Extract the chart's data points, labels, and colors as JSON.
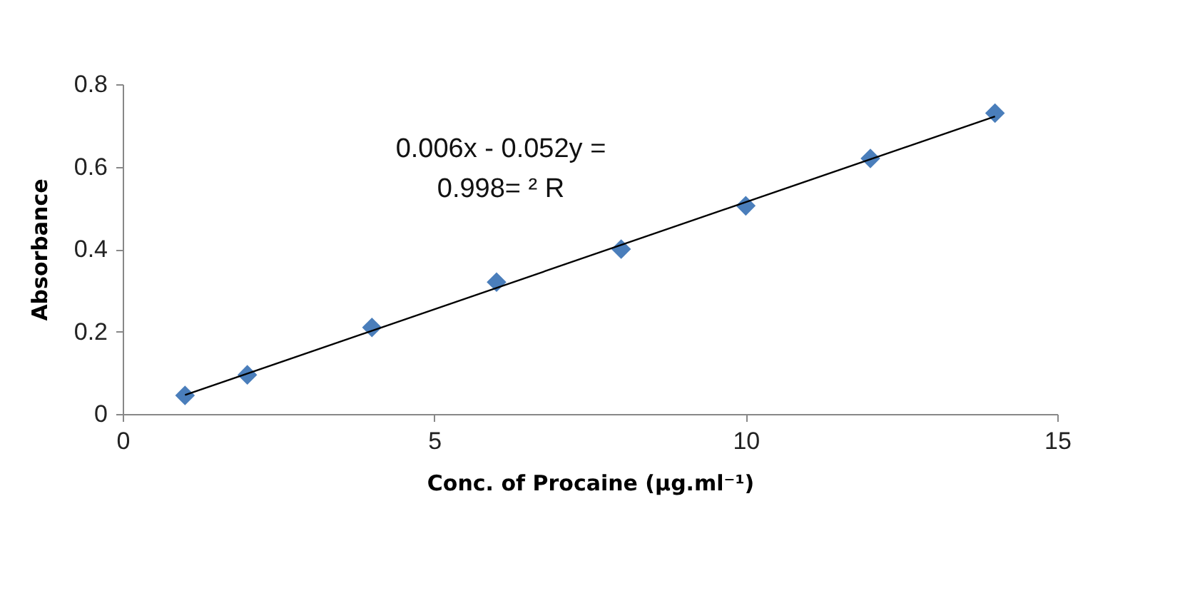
{
  "chart_data": {
    "type": "scatter",
    "xlabel": "Conc. of Procaine (μg.ml⁻¹)",
    "ylabel": "Absorbance",
    "annotations": [
      "0.006x - 0.052y =",
      "0.998= ² R"
    ],
    "series": [
      {
        "color": "#4a7ebb",
        "marker": "diamond",
        "x": [
          1,
          2,
          4,
          6,
          8,
          10,
          12,
          14
        ],
        "values": [
          0.045,
          0.095,
          0.21,
          0.32,
          0.4,
          0.505,
          0.62,
          0.73
        ]
      },
      {
        "type": "line",
        "color": "#000000",
        "marker": "none",
        "x": [
          1,
          14
        ],
        "values": [
          0.046,
          0.722
        ]
      }
    ],
    "xlim": [
      0,
      15
    ],
    "xticks": [
      0,
      5,
      10,
      15
    ],
    "ylim": [
      0,
      0.8
    ],
    "yticks": [
      0,
      0.2,
      0.4,
      0.6,
      0.8
    ],
    "grid": false
  }
}
